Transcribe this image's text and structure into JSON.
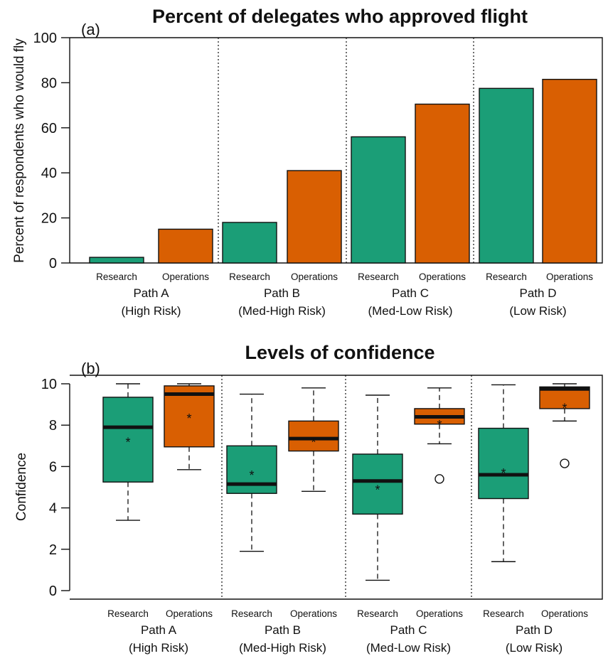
{
  "chart_data": [
    {
      "type": "bar",
      "panel_label": "(a)",
      "title": "Percent of delegates who approved flight",
      "ylabel": "Percent of respondents who would fly",
      "ylim": [
        0,
        100
      ],
      "yticks": [
        "0",
        "20",
        "40",
        "60",
        "80",
        "100"
      ],
      "group_dividers": "dotted",
      "categories": [
        "Research",
        "Operations",
        "Research",
        "Operations",
        "Research",
        "Operations",
        "Research",
        "Operations"
      ],
      "groups": [
        {
          "line1": "Path A",
          "line2": "(High Risk)"
        },
        {
          "line1": "Path B",
          "line2": "(Med-High Risk)"
        },
        {
          "line1": "Path C",
          "line2": "(Med-Low Risk)"
        },
        {
          "line1": "Path D",
          "line2": "(Low Risk)"
        }
      ],
      "values": [
        2.5,
        15,
        18,
        41,
        56,
        70.5,
        77.5,
        81.5
      ],
      "colors": {
        "Research": "#1b9e77",
        "Operations": "#d95f02"
      }
    },
    {
      "type": "box",
      "panel_label": "(b)",
      "title": "Levels of confidence",
      "ylabel": "Confidence",
      "ylim": [
        0,
        10
      ],
      "yticks": [
        "0",
        "2",
        "4",
        "6",
        "8",
        "10"
      ],
      "group_dividers": "dotted",
      "categories": [
        "Research",
        "Operations",
        "Research",
        "Operations",
        "Research",
        "Operations",
        "Research",
        "Operations"
      ],
      "groups": [
        {
          "line1": "Path A",
          "line2": "(High Risk)"
        },
        {
          "line1": "Path B",
          "line2": "(Med-High Risk)"
        },
        {
          "line1": "Path C",
          "line2": "(Med-Low Risk)"
        },
        {
          "line1": "Path D",
          "line2": "(Low Risk)"
        }
      ],
      "mean_marker": "*",
      "boxes": [
        {
          "whisker_low": 3.4,
          "q1": 5.25,
          "median": 7.9,
          "q3": 9.35,
          "whisker_high": 10,
          "mean": 7.3,
          "outliers": []
        },
        {
          "whisker_low": 5.85,
          "q1": 6.95,
          "median": 9.5,
          "q3": 9.9,
          "whisker_high": 10,
          "mean": 8.45,
          "outliers": []
        },
        {
          "whisker_low": 1.9,
          "q1": 4.7,
          "median": 5.15,
          "q3": 7.0,
          "whisker_high": 9.5,
          "mean": 5.7,
          "outliers": []
        },
        {
          "whisker_low": 4.8,
          "q1": 6.75,
          "median": 7.35,
          "q3": 8.2,
          "whisker_high": 9.8,
          "mean": 7.3,
          "outliers": []
        },
        {
          "whisker_low": 0.5,
          "q1": 3.7,
          "median": 5.3,
          "q3": 6.6,
          "whisker_high": 9.45,
          "mean": 5.0,
          "outliers": []
        },
        {
          "whisker_low": 7.1,
          "q1": 8.05,
          "median": 8.4,
          "q3": 8.8,
          "whisker_high": 9.8,
          "mean": 8.15,
          "outliers": [
            5.4
          ]
        },
        {
          "whisker_low": 1.4,
          "q1": 4.45,
          "median": 5.6,
          "q3": 7.85,
          "whisker_high": 9.95,
          "mean": 5.8,
          "outliers": []
        },
        {
          "whisker_low": 8.2,
          "q1": 8.8,
          "median": 9.75,
          "q3": 9.85,
          "whisker_high": 10,
          "mean": 8.95,
          "outliers": [
            6.15
          ]
        }
      ],
      "colors": {
        "Research": "#1b9e77",
        "Operations": "#d95f02"
      }
    }
  ]
}
